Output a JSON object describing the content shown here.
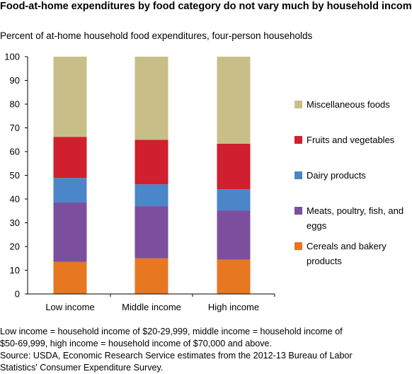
{
  "title": "Food-at-home expenditures by food category do not vary much by household income",
  "subtitle": "Percent of at-home household food expenditures, four-person households",
  "notes": [
    "Low income = household income of  $20-29,999, middle income = household income of",
    "$50-69,999, high income = household income of $70,000 and above.",
    "Source: USDA, Economic Research Service estimates from the 2012-13 Bureau of Labor",
    "Statistics' Consumer Expenditure Survey."
  ],
  "chart_data": {
    "type": "bar",
    "stacked": true,
    "categories": [
      "Low income",
      "Middle income",
      "High income"
    ],
    "ylim": [
      0,
      100
    ],
    "yticks": [
      0,
      10,
      20,
      30,
      40,
      50,
      60,
      70,
      80,
      90,
      100
    ],
    "xlabel": "",
    "ylabel": "",
    "grid": false,
    "legend_position": "right",
    "series": [
      {
        "name": "Cereals and bakery products",
        "color": "#e87722",
        "values": [
          13.5,
          15.0,
          14.5
        ]
      },
      {
        "name": "Meats, poultry, fish, and eggs",
        "color": "#7b4f9d",
        "values": [
          25.0,
          22.0,
          20.7
        ]
      },
      {
        "name": "Dairy products",
        "color": "#4a86c8",
        "values": [
          10.4,
          9.2,
          8.9
        ]
      },
      {
        "name": "Fruits and vegetables",
        "color": "#d01f2e",
        "values": [
          17.3,
          18.8,
          19.2
        ]
      },
      {
        "name": "Miscellaneous foods",
        "color": "#c8bf88",
        "values": [
          33.8,
          35.0,
          36.7
        ]
      }
    ],
    "legend_order": [
      "Miscellaneous foods",
      "Fruits and vegetables",
      "Dairy products",
      "Meats, poultry, fish, and eggs",
      "Cereals and bakery products"
    ],
    "legend_lines": {
      "Miscellaneous foods": [
        "Miscellaneous foods"
      ],
      "Fruits and vegetables": [
        "Fruits and vegetables"
      ],
      "Dairy products": [
        "Dairy products"
      ],
      "Meats, poultry, fish, and eggs": [
        "Meats, poultry, fish, and",
        "eggs"
      ],
      "Cereals and bakery products": [
        "Cereals and bakery",
        "products"
      ]
    }
  }
}
